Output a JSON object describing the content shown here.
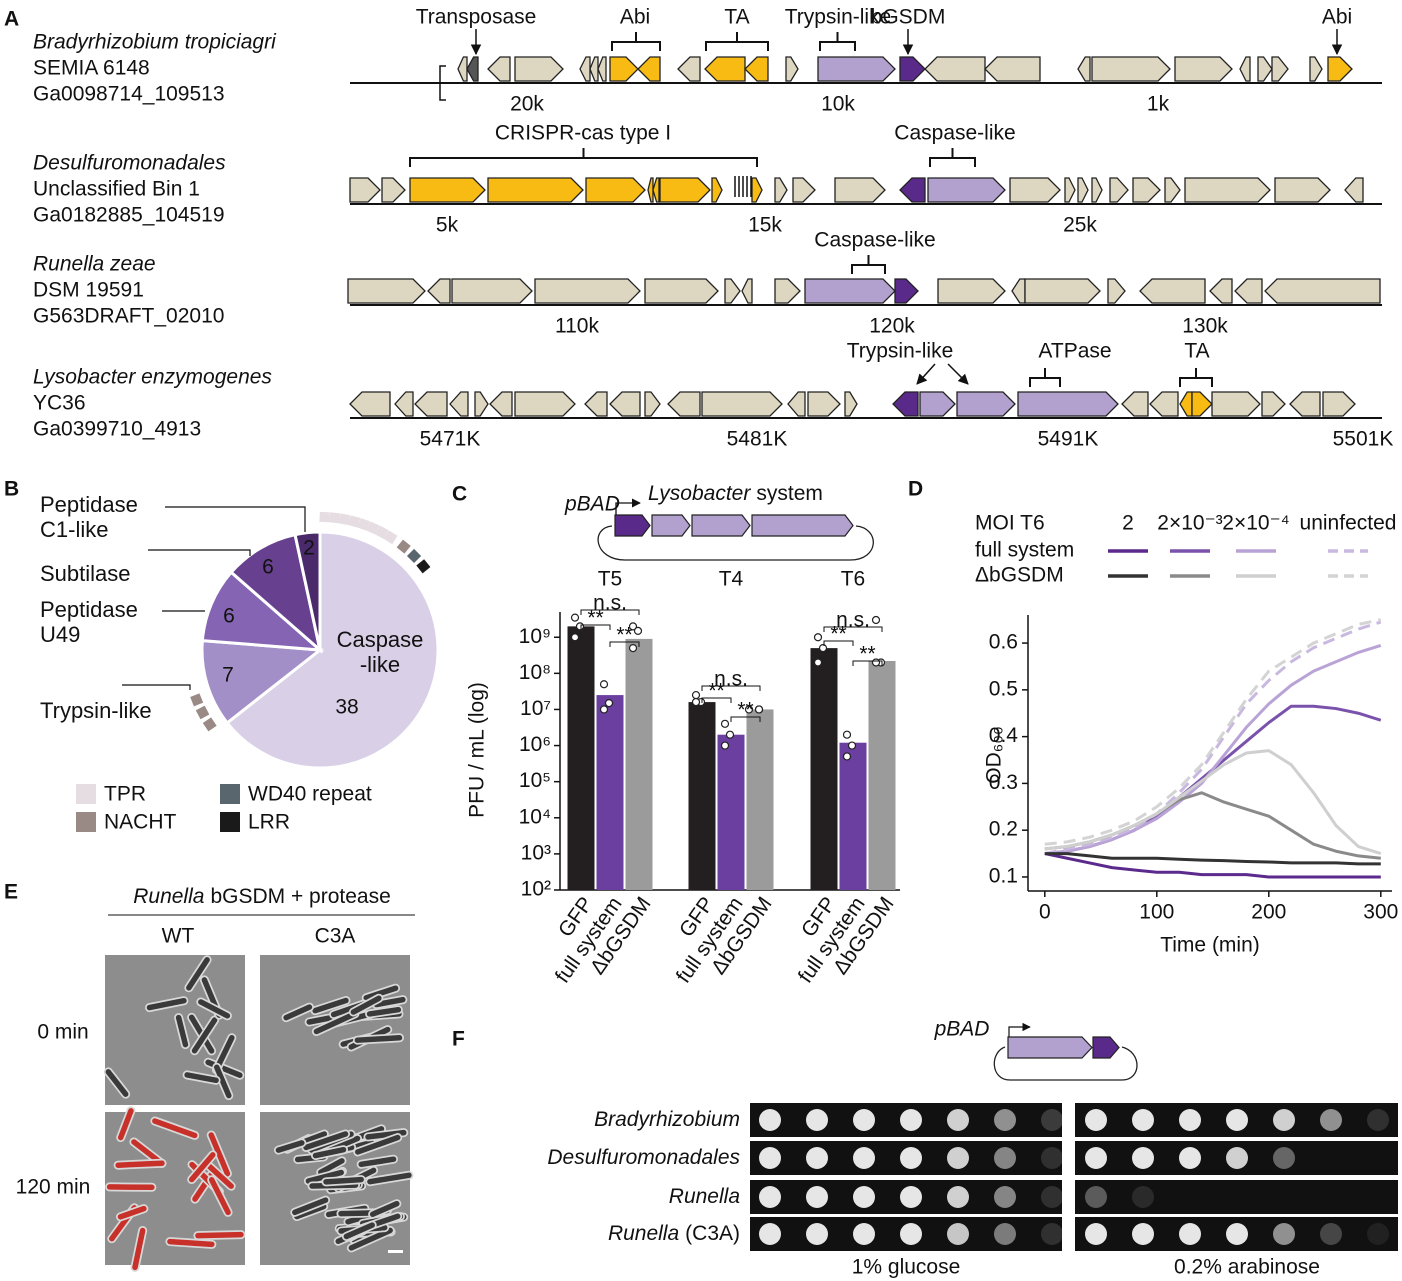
{
  "panel_labels": [
    "A",
    "B",
    "C",
    "D",
    "E",
    "F"
  ],
  "genomes": [
    {
      "species": "Bradyrhizobium tropiciagri",
      "strain": "SEMIA 6148",
      "id": "Ga0098714_109513",
      "annotations": [
        "Transposase",
        "Abi",
        "TA",
        "Trypsin-like",
        "bGSDM",
        "Abi"
      ],
      "ticks": [
        "20k",
        "10k",
        "1k"
      ]
    },
    {
      "species": "Desulfuromonadales",
      "strain": "Unclassified Bin 1",
      "id": "Ga0182885_104519",
      "annotations": [
        "CRISPR-cas type I",
        "Caspase-like"
      ],
      "ticks": [
        "5k",
        "15k",
        "25k"
      ]
    },
    {
      "species": "Runella zeae",
      "strain": "DSM 19591",
      "id": "G563DRAFT_02010",
      "annotations": [
        "Caspase-like"
      ],
      "ticks": [
        "110k",
        "120k",
        "130k"
      ]
    },
    {
      "species": "Lysobacter enzymogenes",
      "strain": "YC36",
      "id": "Ga0399710_4913",
      "annotations": [
        "Trypsin-like",
        "ATPase",
        "TA"
      ],
      "ticks": [
        "5471K",
        "5481K",
        "5491K",
        "5501K"
      ]
    }
  ],
  "chart_data": [
    {
      "type": "pie",
      "categories": [
        "Caspase\n-like",
        "Trypsin-like",
        "Peptidase\nU49",
        "Subtilase",
        "Peptidase\nC1-like"
      ],
      "values": [
        38,
        7,
        6,
        6,
        2
      ],
      "colors": [
        "#d9cfe6",
        "#a38fc8",
        "#8565b3",
        "#67418f",
        "#4b2a6b"
      ],
      "legend": [
        {
          "name": "TPR",
          "color": "#e6dde3"
        },
        {
          "name": "NACHT",
          "color": "#9a8a86"
        },
        {
          "name": "WD40 repeat",
          "color": "#5a666e"
        },
        {
          "name": "LRR",
          "color": "#1a1a1a"
        }
      ]
    },
    {
      "type": "bar",
      "construct": "pBAD",
      "construct_title": {
        "italic": "Lysobacter",
        "rest": "system"
      },
      "categories": [
        "T5",
        "T4",
        "T6"
      ],
      "ylabel": "PFU / mL (log)",
      "log_scale": true,
      "ylim": [
        100,
        5000000000
      ],
      "yticks": [
        {
          "value": 100,
          "label": "10²"
        },
        {
          "value": 1000,
          "label": "10³"
        },
        {
          "value": 10000,
          "label": "10⁴"
        },
        {
          "value": 100000,
          "label": "10⁵"
        },
        {
          "value": 1000000,
          "label": "10⁶"
        },
        {
          "value": 10000000,
          "label": "10⁷"
        },
        {
          "value": 100000000,
          "label": "10⁸"
        },
        {
          "value": 1000000000,
          "label": "10⁹"
        }
      ],
      "series": [
        {
          "name": "GFP",
          "color": "#231f20",
          "values": [
            2000000000,
            16000000,
            500000000
          ],
          "points": [
            [
              3500000000,
              2000000000,
              1000000000
            ],
            [
              25000000,
              16000000,
              16000000
            ],
            [
              1000000000,
              500000000,
              200000000
            ]
          ]
        },
        {
          "name": "full system",
          "color": "#6b3fa0",
          "values": [
            25000000,
            2000000,
            1200000
          ],
          "points": [
            [
              50000000,
              15000000,
              10000000
            ],
            [
              4000000,
              2000000,
              1000000
            ],
            [
              2000000,
              1000000,
              500000
            ]
          ]
        },
        {
          "name": "ΔbGSDM",
          "color": "#9b9b9b",
          "values": [
            900000000,
            10000000,
            220000000
          ],
          "points": [
            [
              2000000000,
              1500000000,
              500000000
            ],
            [
              10000000,
              10000000,
              10000000
            ],
            [
              3000000000,
              200000000,
              200000000
            ]
          ]
        }
      ],
      "annotations": [
        [
          "**",
          "**",
          "n.s."
        ],
        [
          "**",
          "**",
          "n.s."
        ],
        [
          "**",
          "**",
          "n.s."
        ]
      ]
    },
    {
      "type": "line",
      "x": [
        0,
        20,
        40,
        60,
        80,
        100,
        120,
        140,
        160,
        180,
        200,
        220,
        240,
        260,
        280,
        300
      ],
      "xlabel": "Time (min)",
      "ylabel": "OD₆₀₀",
      "xlim": [
        -15,
        310
      ],
      "xticks": [
        0,
        100,
        200,
        300
      ],
      "ylim": [
        0.07,
        0.66
      ],
      "yticks": [
        0.1,
        0.2,
        0.3,
        0.4,
        0.5,
        0.6
      ],
      "legend_title": "MOI T6",
      "columns": [
        "2",
        "2×10⁻³",
        "2×10⁻⁴",
        "uninfected"
      ],
      "series": [
        {
          "name": "full system",
          "lines": [
            {
              "color": "#5b2a8c",
              "dashed": false,
              "values": [
                0.15,
                0.14,
                0.13,
                0.12,
                0.115,
                0.11,
                0.11,
                0.105,
                0.105,
                0.105,
                0.1,
                0.1,
                0.1,
                0.1,
                0.1,
                0.1
              ]
            },
            {
              "color": "#7b52ab",
              "dashed": false,
              "values": [
                0.15,
                0.155,
                0.165,
                0.18,
                0.2,
                0.23,
                0.27,
                0.31,
                0.35,
                0.39,
                0.43,
                0.465,
                0.465,
                0.46,
                0.45,
                0.435
              ]
            },
            {
              "color": "#b9a3d6",
              "dashed": false,
              "values": [
                0.15,
                0.155,
                0.165,
                0.18,
                0.2,
                0.225,
                0.26,
                0.3,
                0.36,
                0.42,
                0.47,
                0.51,
                0.54,
                0.56,
                0.58,
                0.595
              ]
            },
            {
              "color": "#c9b8e0",
              "dashed": true,
              "values": [
                0.15,
                0.16,
                0.17,
                0.185,
                0.205,
                0.235,
                0.28,
                0.33,
                0.4,
                0.47,
                0.52,
                0.56,
                0.59,
                0.61,
                0.63,
                0.645
              ]
            }
          ]
        },
        {
          "name": "ΔbGSDM",
          "lines": [
            {
              "color": "#333333",
              "dashed": false,
              "values": [
                0.15,
                0.15,
                0.145,
                0.14,
                0.14,
                0.14,
                0.138,
                0.136,
                0.135,
                0.133,
                0.132,
                0.13,
                0.13,
                0.13,
                0.128,
                0.128
              ]
            },
            {
              "color": "#8a8a8a",
              "dashed": false,
              "values": [
                0.16,
                0.165,
                0.175,
                0.19,
                0.21,
                0.235,
                0.265,
                0.28,
                0.26,
                0.245,
                0.23,
                0.2,
                0.17,
                0.155,
                0.145,
                0.14
              ]
            },
            {
              "color": "#cfcfcf",
              "dashed": false,
              "values": [
                0.16,
                0.165,
                0.175,
                0.19,
                0.21,
                0.235,
                0.27,
                0.305,
                0.34,
                0.365,
                0.37,
                0.34,
                0.28,
                0.21,
                0.165,
                0.15
              ]
            },
            {
              "color": "#d4d4d4",
              "dashed": true,
              "values": [
                0.17,
                0.175,
                0.185,
                0.2,
                0.22,
                0.25,
                0.29,
                0.34,
                0.41,
                0.48,
                0.54,
                0.57,
                0.6,
                0.62,
                0.64,
                0.65
              ]
            }
          ]
        }
      ]
    }
  ],
  "microscopy": {
    "title": {
      "italic": "Runella",
      "rest": "bGSDM + protease"
    },
    "columns": [
      "WT",
      "C3A"
    ],
    "rows": [
      "0 min",
      "120 min"
    ]
  },
  "spot_assay": {
    "construct": "pBAD",
    "rows": [
      {
        "italic": "Bradyrhizobium"
      },
      {
        "italic": "Desulfuromonadales"
      },
      {
        "italic": "Runella"
      },
      {
        "italic": "Runella",
        "rest": "(C3A)"
      }
    ],
    "columns": [
      "1% glucose",
      "0.2% arabinose"
    ]
  }
}
